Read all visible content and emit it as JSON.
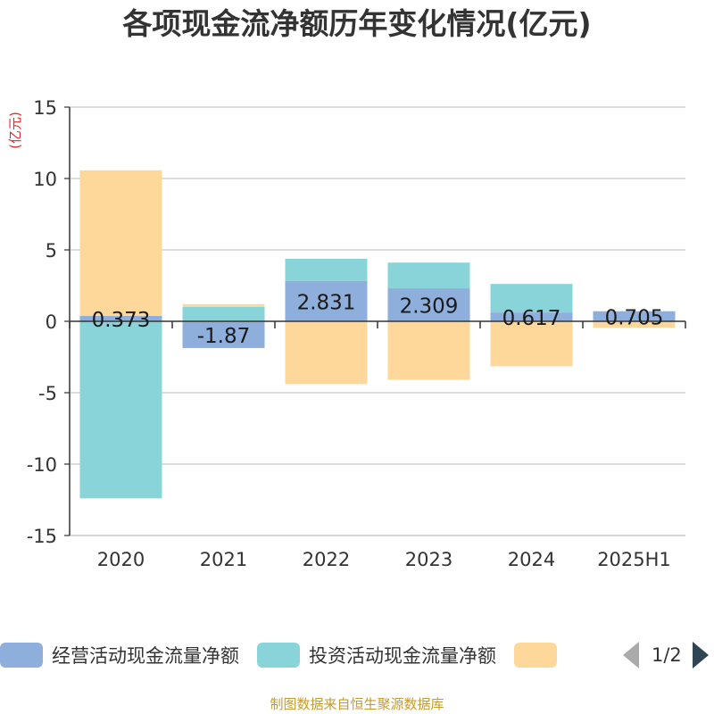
{
  "chart_data": {
    "type": "bar",
    "stacked": true,
    "title": "各项现金流净额历年变化情况(亿元)",
    "ylabel": "(亿元)",
    "categories": [
      "2020",
      "2021",
      "2022",
      "2023",
      "2024",
      "2025H1"
    ],
    "ylim": [
      -15,
      15
    ],
    "yticks": [
      15,
      10,
      5,
      0,
      -5,
      -10,
      -15
    ],
    "grid": true,
    "series": [
      {
        "name": "经营活动现金流量净额",
        "color": "#8eaedb",
        "values": [
          0.373,
          -1.87,
          2.831,
          2.309,
          0.617,
          0.705
        ],
        "labels": [
          "0.373",
          "-1.87",
          "2.831",
          "2.309",
          "0.617",
          "0.705"
        ]
      },
      {
        "name": "投资活动现金流量净额",
        "color": "#88d4d8",
        "values": [
          -12.4,
          1.0,
          1.55,
          1.8,
          2.0,
          0.0
        ]
      },
      {
        "name": "",
        "color": "#fed89a",
        "values": [
          10.2,
          0.2,
          -4.4,
          -4.1,
          -3.15,
          -0.45
        ]
      }
    ]
  },
  "legend": {
    "page": "1/2"
  },
  "source": "制图数据来自恒生聚源数据库"
}
